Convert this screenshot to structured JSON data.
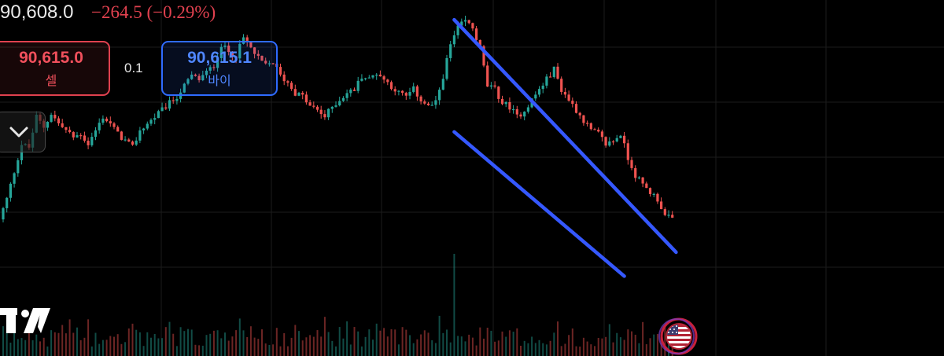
{
  "header": {
    "price": "90,608.0",
    "change": "−264.5 (−0.29%)"
  },
  "trade": {
    "sell_price": "90,615.0",
    "sell_label": "셀",
    "spread": "0.1",
    "buy_price": "90,615.1",
    "buy_label": "바이"
  },
  "icons": {
    "collapse": "chevron-down-icon",
    "logo": "tradingview-logo-icon",
    "flag": "us-flag-icon"
  },
  "colors": {
    "background": "#000000",
    "up": "#26a69a",
    "down": "#ef5350",
    "channel": "#3558ff",
    "grid": "#1c1c1c"
  },
  "chart_data": {
    "type": "candlestick",
    "close_path": [
      89400,
      89700,
      90100,
      90500,
      90450,
      90900,
      90750,
      90950,
      90800,
      90700,
      90600,
      90650,
      90500,
      90700,
      90900,
      90800,
      90650,
      90550,
      90450,
      90700,
      90800,
      90900,
      91000,
      91100,
      91200,
      91350,
      91500,
      91450,
      91550,
      91650,
      91950,
      91850,
      91800,
      92050,
      91900,
      91750,
      91650,
      91700,
      91500,
      91400,
      91250,
      91200,
      91050,
      91000,
      90900,
      91050,
      91150,
      91250,
      91300,
      91500,
      91450,
      91550,
      91450,
      91350,
      91250,
      91200,
      91300,
      91150,
      91050,
      91100,
      91500,
      91950,
      92200,
      92300,
      92200,
      91900,
      91350,
      91300,
      91100,
      91050,
      90900,
      91000,
      91150,
      91300,
      91450,
      91600,
      91300,
      91150,
      91000,
      90850,
      90700,
      90650,
      90500,
      90550,
      90650,
      90300,
      90050,
      89900,
      89800,
      89700,
      89450,
      89400
    ],
    "channel_lines": [
      {
        "name": "",
        "start": [
          61,
          92320
        ],
        "end": [
          91,
          88920
        ]
      },
      {
        "name": "",
        "start": [
          61,
          90680
        ],
        "end": [
          84,
          88570
        ]
      }
    ],
    "volume_spikes": [
      61
    ],
    "current_price": 90608.0,
    "change": -264.5,
    "change_pct": -0.29,
    "grid": true,
    "y_axis_visible": false,
    "x_axis_visible": false
  }
}
